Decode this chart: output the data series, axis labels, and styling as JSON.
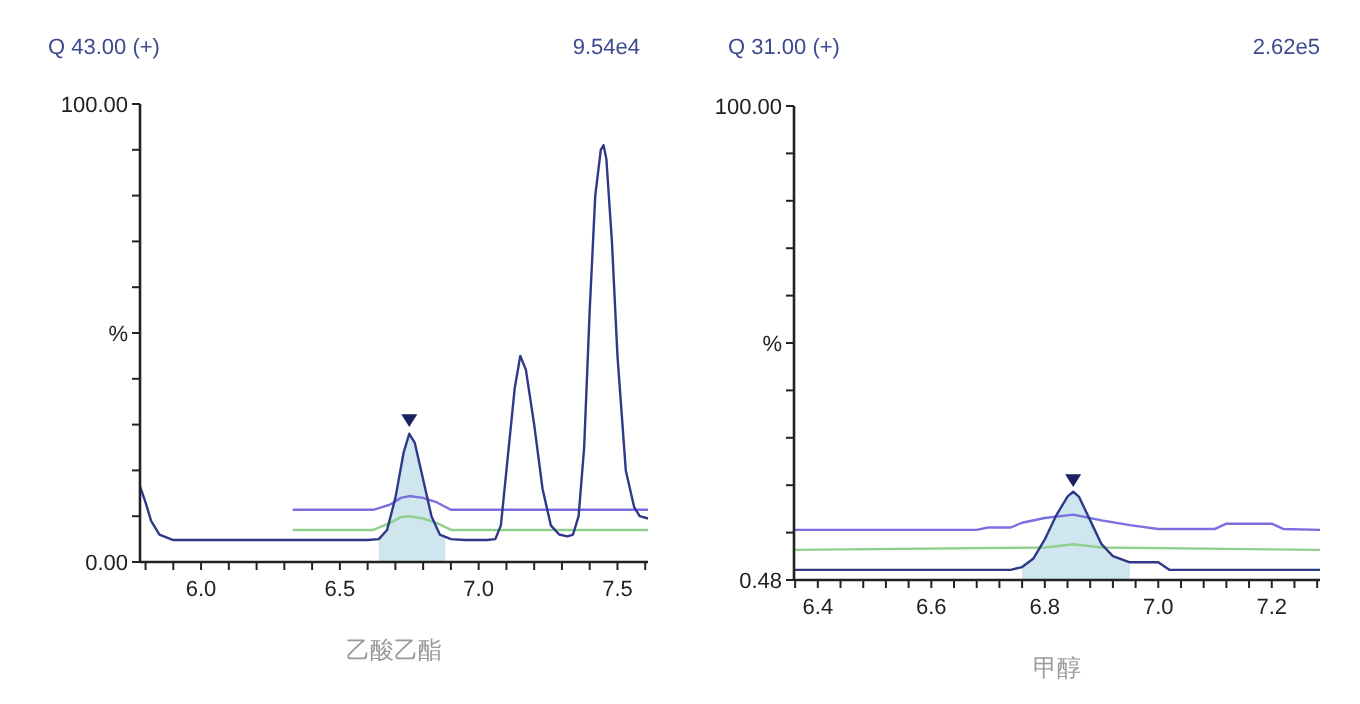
{
  "chart_data": [
    {
      "type": "line",
      "title": "Q 43.00 (+)",
      "subtitle": "9.54e4",
      "xlabel": "乙酸乙酯",
      "xlim": [
        5.78,
        7.61
      ],
      "ylim": [
        0,
        100
      ],
      "xticks": [
        {
          "value": 5.8,
          "label": null
        },
        {
          "value": 5.9,
          "label": null
        },
        {
          "value": 6.0,
          "label": "6.0"
        },
        {
          "value": 6.1,
          "label": null
        },
        {
          "value": 6.2,
          "label": null
        },
        {
          "value": 6.3,
          "label": null
        },
        {
          "value": 6.4,
          "label": null
        },
        6.5,
        {
          "value": 6.6,
          "label": null
        },
        {
          "value": 6.7,
          "label": null
        },
        {
          "value": 6.8,
          "label": null
        },
        {
          "value": 6.9,
          "label": null
        },
        {
          "value": 7.0,
          "label": "7.0"
        },
        {
          "value": 7.1,
          "label": null
        },
        {
          "value": 7.2,
          "label": null
        },
        {
          "value": 7.3,
          "label": null
        },
        {
          "value": 7.4,
          "label": null
        },
        7.5,
        {
          "value": 7.6,
          "label": null
        }
      ],
      "yticks": [
        {
          "value": 0,
          "label": "0.00"
        },
        {
          "value": 10,
          "label": null
        },
        {
          "value": 20,
          "label": null
        },
        {
          "value": 30,
          "label": null
        },
        {
          "value": 40,
          "label": null
        },
        {
          "value": 50,
          "label": "%"
        },
        {
          "value": 60,
          "label": null
        },
        {
          "value": 70,
          "label": null
        },
        {
          "value": 80,
          "label": null
        },
        {
          "value": 90,
          "label": null
        },
        {
          "value": 100,
          "label": "100.00"
        }
      ],
      "grid": false,
      "series": [
        {
          "type": "area",
          "color": "#cfe6ee",
          "x": [
            6.64,
            6.67,
            6.7,
            6.73,
            6.75,
            6.77,
            6.8,
            6.83,
            6.86,
            6.88
          ],
          "values": [
            5,
            7,
            14,
            24,
            28,
            26,
            18,
            10,
            6,
            5.5
          ]
        },
        {
          "type": "line",
          "color": "#7b6fe0",
          "x": [
            6.33,
            6.62,
            6.68,
            6.72,
            6.75,
            6.8,
            6.85,
            6.9,
            7.61
          ],
          "values": [
            11.4,
            11.4,
            12.5,
            14,
            14.4,
            14,
            13,
            11.4,
            11.4
          ]
        },
        {
          "type": "line",
          "color": "#8fd08f",
          "x": [
            6.33,
            6.62,
            6.68,
            6.72,
            6.75,
            6.8,
            6.85,
            6.9,
            7.61
          ],
          "values": [
            7,
            7,
            8.5,
            9.8,
            10,
            9.5,
            8.5,
            7,
            7
          ]
        },
        {
          "color": "#2e3a87",
          "x": [
            5.78,
            5.8,
            5.82,
            5.85,
            5.9,
            6.0,
            6.3,
            6.6,
            6.64,
            6.67,
            6.7,
            6.73,
            6.75,
            6.77,
            6.8,
            6.83,
            6.86,
            6.9,
            6.95,
            7.0,
            7.03,
            7.06,
            7.08,
            7.1,
            7.13,
            7.15,
            7.17,
            7.2,
            7.23,
            7.26,
            7.29,
            7.32,
            7.34,
            7.36,
            7.38,
            7.4,
            7.42,
            7.44,
            7.45,
            7.46,
            7.48,
            7.5,
            7.53,
            7.56,
            7.58,
            7.61
          ],
          "values": [
            16.5,
            13,
            9,
            6,
            4.8,
            4.8,
            4.8,
            4.8,
            5,
            7,
            14,
            24,
            28,
            26,
            18,
            10,
            6,
            5,
            4.8,
            4.8,
            4.8,
            5,
            8,
            20,
            38,
            45,
            42,
            30,
            16,
            8,
            6,
            5.6,
            6,
            10,
            25,
            55,
            80,
            90,
            91,
            88,
            70,
            45,
            20,
            12,
            10,
            9.5
          ]
        },
        {
          "type": "scatter",
          "marker": "triangle",
          "color": "#1a2060",
          "x": [
            6.75
          ],
          "values": [
            30.5
          ]
        }
      ]
    },
    {
      "type": "line",
      "title": "Q 31.00 (+)",
      "subtitle": "2.62e5",
      "xlabel": "甲醇",
      "xlim": [
        6.358,
        7.285
      ],
      "ylim": [
        0.48,
        100
      ],
      "xticks": [
        {
          "value": 6.36,
          "label": null
        },
        6.4,
        {
          "value": 6.44,
          "label": null
        },
        {
          "value": 6.48,
          "label": null
        },
        {
          "value": 6.52,
          "label": null
        },
        {
          "value": 6.56,
          "label": null
        },
        6.6,
        {
          "value": 6.64,
          "label": null
        },
        {
          "value": 6.68,
          "label": null
        },
        {
          "value": 6.72,
          "label": null
        },
        {
          "value": 6.76,
          "label": null
        },
        6.8,
        {
          "value": 6.84,
          "label": null
        },
        {
          "value": 6.88,
          "label": null
        },
        {
          "value": 6.92,
          "label": null
        },
        {
          "value": 6.96,
          "label": null
        },
        {
          "value": 7.0,
          "label": "7.0"
        },
        {
          "value": 7.04,
          "label": null
        },
        {
          "value": 7.08,
          "label": null
        },
        {
          "value": 7.12,
          "label": null
        },
        {
          "value": 7.16,
          "label": null
        },
        7.2,
        {
          "value": 7.24,
          "label": null
        },
        {
          "value": 7.28,
          "label": null
        }
      ],
      "yticks": [
        0.48,
        {
          "value": 10.43,
          "label": null
        },
        {
          "value": 20.38,
          "label": null
        },
        {
          "value": 30.34,
          "label": null
        },
        {
          "value": 40.29,
          "label": null
        },
        {
          "value": 50.24,
          "label": "%"
        },
        {
          "value": 60.19,
          "label": null
        },
        {
          "value": 70.14,
          "label": null
        },
        {
          "value": 80.1,
          "label": null
        },
        {
          "value": 90.05,
          "label": null
        },
        {
          "value": 100,
          "label": "100.00"
        }
      ],
      "grid": false,
      "series": [
        {
          "type": "area",
          "color": "#cfe6ee",
          "x": [
            6.76,
            6.78,
            6.8,
            6.82,
            6.84,
            6.85,
            6.86,
            6.88,
            6.9,
            6.92,
            6.95
          ],
          "values": [
            3.2,
            5,
            9,
            14,
            18,
            19,
            18,
            13,
            8,
            5.5,
            4.2
          ]
        },
        {
          "type": "line",
          "color": "#7b6fe0",
          "x": [
            6.358,
            6.68,
            6.7,
            6.74,
            6.76,
            6.8,
            6.85,
            6.9,
            6.95,
            7.0,
            7.1,
            7.12,
            7.2,
            7.22,
            7.285
          ],
          "values": [
            11,
            11,
            11.5,
            11.5,
            12.5,
            13.5,
            14.2,
            13,
            12,
            11.2,
            11.2,
            12.3,
            12.3,
            11.2,
            11
          ]
        },
        {
          "type": "line",
          "color": "#8fd08f",
          "x": [
            6.358,
            6.8,
            6.85,
            6.9,
            7.285
          ],
          "values": [
            6.8,
            7.3,
            8,
            7.3,
            6.8
          ]
        },
        {
          "color": "#2e3a87",
          "x": [
            6.358,
            6.74,
            6.76,
            6.78,
            6.8,
            6.82,
            6.84,
            6.85,
            6.86,
            6.88,
            6.9,
            6.92,
            6.95,
            7.0,
            7.02,
            7.285
          ],
          "values": [
            2.6,
            2.6,
            3.2,
            5,
            9,
            14,
            18,
            19,
            18,
            13,
            8,
            5.5,
            4.2,
            4.2,
            2.6,
            2.6
          ]
        },
        {
          "type": "scatter",
          "marker": "triangle",
          "color": "#1a2060",
          "x": [
            6.85
          ],
          "values": [
            21
          ]
        }
      ]
    }
  ]
}
